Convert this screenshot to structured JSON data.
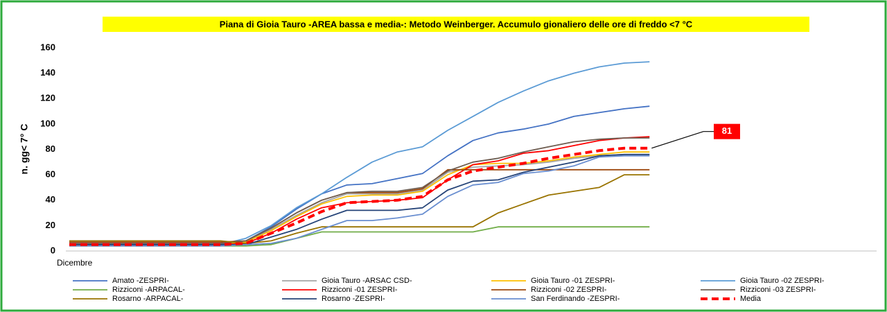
{
  "chart_data": {
    "type": "line",
    "title": "Piana di Gioia Tauro -AREA bassa e media-: Metodo Weinberger. Accumulo gionaliero delle ore di freddo  <7 °C",
    "y_label": "n. gg< 7° C",
    "categories": [
      "Dicembre",
      null,
      null,
      null,
      null,
      null,
      null,
      null,
      null,
      null,
      null,
      null,
      null,
      null,
      null,
      null,
      null,
      null,
      null,
      null,
      null,
      null,
      null,
      null,
      null,
      null,
      null,
      null,
      null,
      null,
      null,
      null,
      null
    ],
    "ylim": [
      0,
      160
    ],
    "yticks": [
      0,
      20,
      40,
      60,
      80,
      100,
      120,
      140,
      160
    ],
    "grid": false,
    "series": [
      {
        "name": "Amato -ZESPRI-",
        "color": "#4472c4",
        "values": [
          5,
          5,
          5,
          5,
          5,
          5,
          5,
          8,
          19,
          33,
          45,
          52,
          53,
          57,
          61,
          75,
          87,
          93,
          96,
          100,
          106,
          109,
          112,
          114,
          null,
          null,
          null,
          null,
          null,
          null,
          null,
          null,
          null
        ]
      },
      {
        "name": "Gioia Tauro -ARSAC CSD-",
        "color": "#a5a5a5",
        "values": [
          5,
          5,
          5,
          5,
          5,
          5,
          5,
          7,
          17,
          28,
          38,
          45,
          45,
          45,
          48,
          62,
          66,
          67,
          68,
          70,
          73,
          75,
          76,
          76,
          null,
          null,
          null,
          null,
          null,
          null,
          null,
          null,
          null
        ]
      },
      {
        "name": "Gioia Tauro -01 ZESPRI-",
        "color": "#ffc000",
        "values": [
          5,
          5,
          5,
          5,
          5,
          5,
          5,
          7,
          16,
          27,
          37,
          43,
          44,
          44,
          47,
          60,
          68,
          69,
          69,
          71,
          74,
          76,
          78,
          78,
          null,
          null,
          null,
          null,
          null,
          null,
          null,
          null,
          null
        ]
      },
      {
        "name": "Gioia Tauro -02 ZESPRI-",
        "color": "#5b9bd5",
        "values": [
          5,
          5,
          5,
          5,
          5,
          5,
          5,
          10,
          20,
          34,
          45,
          58,
          70,
          78,
          82,
          95,
          106,
          117,
          126,
          134,
          140,
          145,
          148,
          149,
          null,
          null,
          null,
          null,
          null,
          null,
          null,
          null,
          null
        ]
      },
      {
        "name": "Rizziconi -ARPACAL-",
        "color": "#70ad47",
        "values": [
          4,
          4,
          4,
          4,
          4,
          4,
          4,
          4,
          5,
          10,
          15,
          15,
          15,
          15,
          15,
          15,
          15,
          19,
          19,
          19,
          19,
          19,
          19,
          19,
          null,
          null,
          null,
          null,
          null,
          null,
          null,
          null,
          null
        ]
      },
      {
        "name": "Rizziconi -01 ZESPRI-",
        "color": "#ff0000",
        "values": [
          5,
          5,
          5,
          5,
          5,
          5,
          5,
          6,
          14,
          25,
          34,
          38,
          39,
          40,
          42,
          56,
          68,
          71,
          77,
          79,
          83,
          87,
          89,
          90,
          null,
          null,
          null,
          null,
          null,
          null,
          null,
          null,
          null
        ]
      },
      {
        "name": "Rizziconi -02 ZESPRI-",
        "color": "#9e480e",
        "values": [
          7,
          7,
          7,
          7,
          7,
          7,
          7,
          8,
          18,
          30,
          40,
          46,
          46,
          46,
          49,
          64,
          64,
          64,
          64,
          64,
          64,
          64,
          64,
          64,
          null,
          null,
          null,
          null,
          null,
          null,
          null,
          null,
          null
        ]
      },
      {
        "name": "Rizziconi -03 ZESPRI-",
        "color": "#6e5e52",
        "values": [
          6,
          6,
          6,
          6,
          6,
          6,
          6,
          8,
          18,
          30,
          40,
          46,
          47,
          47,
          50,
          63,
          70,
          73,
          78,
          82,
          86,
          88,
          89,
          89,
          null,
          null,
          null,
          null,
          null,
          null,
          null,
          null,
          null
        ]
      },
      {
        "name": "Rosarno -ARPACAL-",
        "color": "#997300",
        "values": [
          8,
          8,
          8,
          8,
          8,
          8,
          8,
          6,
          8,
          14,
          19,
          19,
          19,
          19,
          19,
          19,
          19,
          30,
          37,
          44,
          47,
          50,
          60,
          60,
          null,
          null,
          null,
          null,
          null,
          null,
          null,
          null,
          null
        ]
      },
      {
        "name": "Rosarno -ZESPRI-",
        "color": "#264478",
        "values": [
          5,
          5,
          5,
          5,
          5,
          5,
          5,
          5,
          11,
          17,
          25,
          32,
          32,
          32,
          34,
          48,
          55,
          56,
          62,
          66,
          70,
          75,
          76,
          76,
          null,
          null,
          null,
          null,
          null,
          null,
          null,
          null,
          null
        ]
      },
      {
        "name": "San Ferdinando -ZESPRI-",
        "color": "#698ed0",
        "values": [
          4,
          4,
          4,
          4,
          4,
          4,
          4,
          5,
          6,
          10,
          17,
          24,
          24,
          26,
          29,
          43,
          52,
          54,
          61,
          63,
          67,
          74,
          75,
          75,
          null,
          null,
          null,
          null,
          null,
          null,
          null,
          null,
          null
        ]
      },
      {
        "name": "Media",
        "color": "#ff0000",
        "dashed": true,
        "values": [
          5,
          5,
          5,
          5,
          5,
          5,
          5,
          6,
          14,
          22,
          31,
          38,
          39,
          40,
          43,
          56,
          63,
          66,
          69,
          73,
          76,
          79,
          81,
          81,
          null,
          null,
          null,
          null,
          null,
          null,
          null,
          null,
          null
        ]
      }
    ]
  }
}
